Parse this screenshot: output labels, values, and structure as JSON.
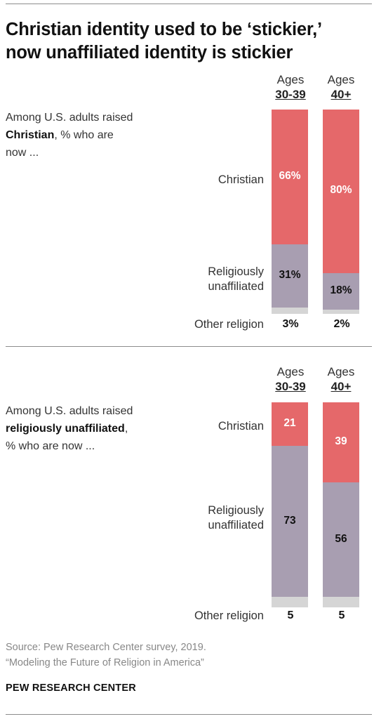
{
  "title_lines": [
    "Christian identity used to be ‘stickier,’",
    "now unaffiliated identity is stickier"
  ],
  "source_lines": [
    "Source: Pew Research Center survey, 2019.",
    "“Modeling the Future of Religion in America”"
  ],
  "brand": "PEW RESEARCH CENTER",
  "colors": {
    "christian": "#E5686A",
    "unaffiliated": "#A89EB1",
    "other": "#D5D5D5"
  },
  "chart_data": [
    {
      "type": "bar",
      "stacked": true,
      "intro": {
        "line1": "Among U.S. adults raised",
        "line2_bold": "Christian",
        "line2_rest": ", % who are",
        "line3": "now ..."
      },
      "categories": [
        {
          "line1": "Ages",
          "line2": "30-39"
        },
        {
          "line1": "Ages",
          "line2": "40+"
        }
      ],
      "series": [
        {
          "name": "Christian",
          "values": [
            66,
            80
          ],
          "labels": [
            "66%",
            "80%"
          ]
        },
        {
          "name": "Religiously unaffiliated",
          "values": [
            31,
            18
          ],
          "labels": [
            "31%",
            "18%"
          ]
        },
        {
          "name": "Other religion",
          "values": [
            3,
            2
          ],
          "labels": [
            "3%",
            "2%"
          ]
        }
      ],
      "label_lines": {
        "christian": "Christian",
        "unaffiliated": [
          "Religiously",
          "unaffiliated"
        ],
        "other": "Other religion"
      }
    },
    {
      "type": "bar",
      "stacked": true,
      "intro": {
        "line1": "Among U.S. adults raised",
        "line2_bold": "religiously unaffiliated",
        "line2_rest": ",",
        "line3": "% who are now ..."
      },
      "categories": [
        {
          "line1": "Ages",
          "line2": "30-39"
        },
        {
          "line1": "Ages",
          "line2": "40+"
        }
      ],
      "series": [
        {
          "name": "Christian",
          "values": [
            21,
            39
          ],
          "labels": [
            "21",
            "39"
          ]
        },
        {
          "name": "Religiously unaffiliated",
          "values": [
            73,
            56
          ],
          "labels": [
            "73",
            "56"
          ]
        },
        {
          "name": "Other religion",
          "values": [
            5,
            5
          ],
          "labels": [
            "5",
            "5"
          ]
        }
      ],
      "label_lines": {
        "christian": "Christian",
        "unaffiliated": [
          "Religiously",
          "unaffiliated"
        ],
        "other": "Other religion"
      }
    }
  ]
}
